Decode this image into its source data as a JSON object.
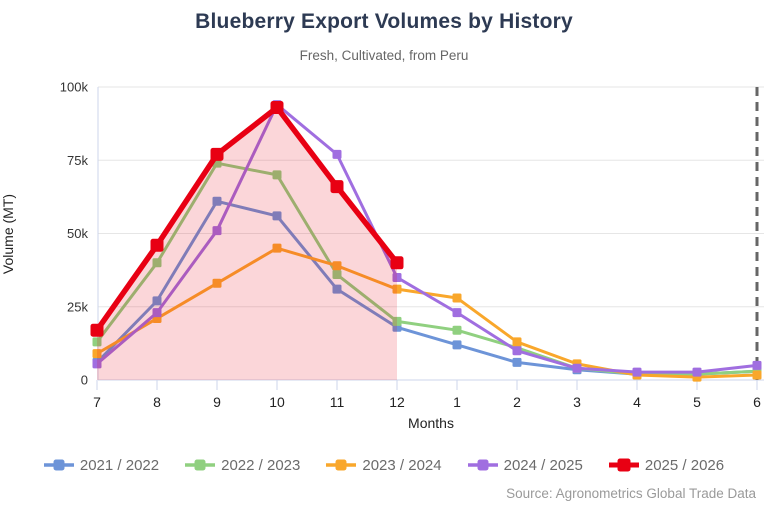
{
  "chart_data": {
    "type": "line",
    "title": "Blueberry Export Volumes by History",
    "subtitle": "Fresh, Cultivated, from Peru",
    "xlabel": "Months",
    "ylabel": "Volume (MT)",
    "x_categories": [
      "7",
      "8",
      "9",
      "10",
      "11",
      "12",
      "1",
      "2",
      "3",
      "4",
      "5",
      "6"
    ],
    "ylim": [
      0,
      100000
    ],
    "y_ticks": [
      {
        "value": 0,
        "label": "0"
      },
      {
        "value": 25000,
        "label": "25k"
      },
      {
        "value": 50000,
        "label": "50k"
      },
      {
        "value": 75000,
        "label": "75k"
      },
      {
        "value": 100000,
        "label": "100k"
      }
    ],
    "grid": "horizontal",
    "legend_position": "bottom",
    "dashed_vline_at_category": "6",
    "dashed_vline_color": "#666666",
    "series": [
      {
        "name": "2021 / 2022",
        "color": "#6d94d8",
        "values": [
          6000,
          27000,
          61000,
          56000,
          31000,
          18000,
          12000,
          6000,
          3500,
          2000,
          2000,
          3000
        ]
      },
      {
        "name": "2022 / 2023",
        "color": "#90d080",
        "values": [
          13000,
          40000,
          74000,
          70000,
          36000,
          20000,
          17000,
          11000,
          4000,
          2000,
          2000,
          3000
        ]
      },
      {
        "name": "2023 / 2024",
        "color": "#f9a72b",
        "values": [
          9000,
          21000,
          33000,
          45000,
          39000,
          31000,
          28000,
          13000,
          5500,
          1700,
          1000,
          1700
        ]
      },
      {
        "name": "2024 / 2025",
        "color": "#a06ee0",
        "values": [
          5500,
          23000,
          51000,
          94000,
          77000,
          35000,
          23000,
          10000,
          4000,
          2700,
          2700,
          5000
        ]
      },
      {
        "name": "2025 / 2026",
        "color": "#e80013",
        "emphasis": true,
        "area_fill": true,
        "area_fill_color": "rgba(232,0,19,0.16)",
        "values": [
          17000,
          46000,
          77000,
          93000,
          66000,
          40000,
          null,
          null,
          null,
          null,
          null,
          null
        ]
      }
    ]
  },
  "source_note": "Source: Agronometrics Global Trade Data"
}
